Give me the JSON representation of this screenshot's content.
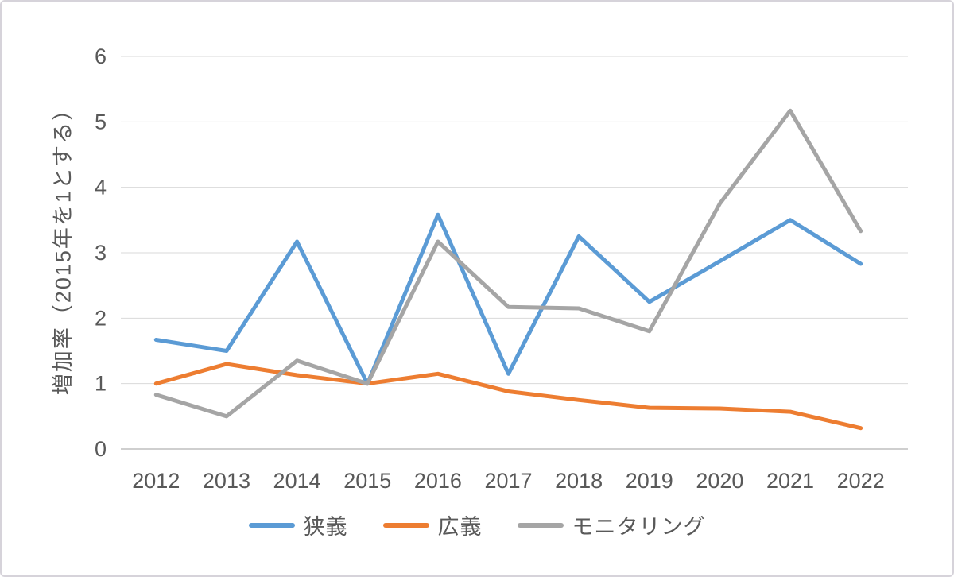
{
  "chart_data": {
    "type": "line",
    "title": "",
    "xlabel": "",
    "ylabel": "増加率（2015年を1とする）",
    "categories": [
      "2012",
      "2013",
      "2014",
      "2015",
      "2016",
      "2017",
      "2018",
      "2019",
      "2020",
      "2021",
      "2022"
    ],
    "series": [
      {
        "name": "狭義",
        "color": "#5B9BD5",
        "values": [
          1.67,
          1.5,
          3.17,
          1.0,
          3.58,
          1.15,
          3.25,
          2.25,
          2.87,
          3.5,
          2.83
        ]
      },
      {
        "name": "広義",
        "color": "#ED7D31",
        "values": [
          1.0,
          1.3,
          1.13,
          1.0,
          1.15,
          0.88,
          0.75,
          0.63,
          0.62,
          0.57,
          0.32
        ]
      },
      {
        "name": "モニタリング",
        "color": "#A5A5A5",
        "values": [
          0.83,
          0.5,
          1.35,
          1.0,
          3.17,
          2.17,
          2.15,
          1.8,
          3.75,
          5.17,
          3.33
        ]
      }
    ],
    "ylim": [
      0,
      6
    ],
    "yticks": [
      0,
      1,
      2,
      3,
      4,
      5,
      6
    ],
    "grid": true,
    "legend_position": "bottom",
    "colors": {
      "text": "#595959",
      "gridline": "#d9d9d9",
      "axis_line": "#bfbfbf",
      "background": "#ffffff"
    }
  }
}
